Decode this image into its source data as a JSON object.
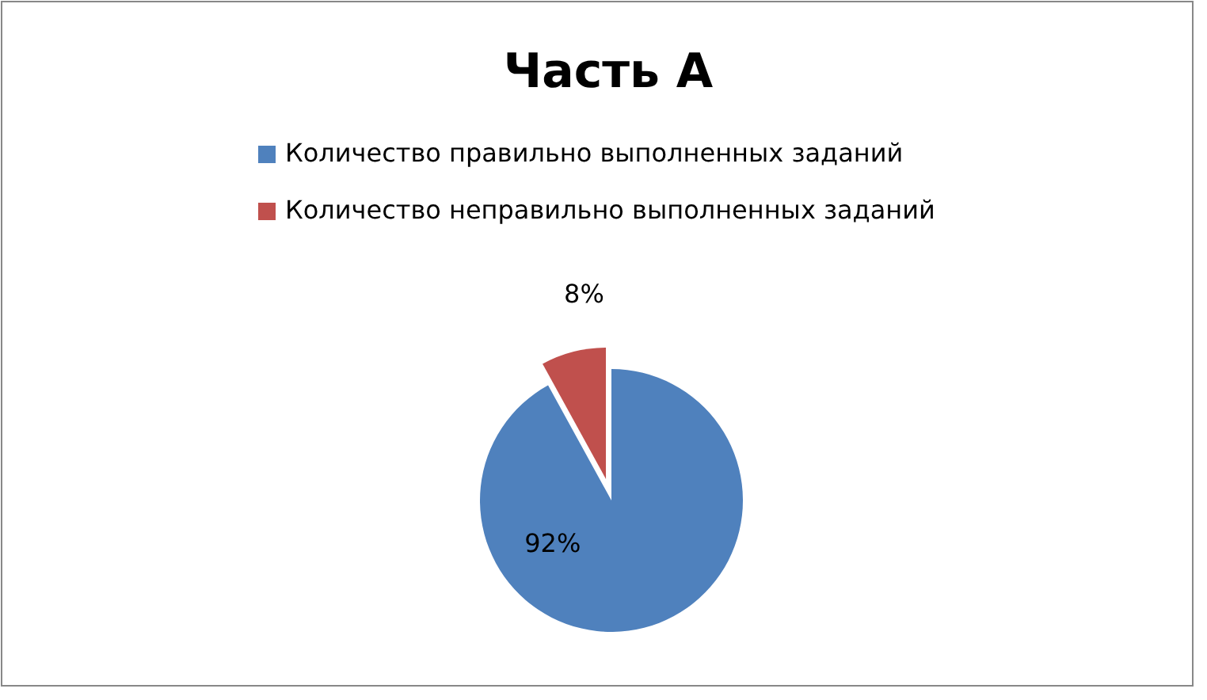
{
  "chart_data": {
    "type": "pie",
    "title": "Часть А",
    "categories": [
      "Количество правильно выполненных заданий",
      "Количество неправильно выполненных заданий"
    ],
    "values": [
      92,
      8
    ],
    "value_labels": [
      "92%",
      "8%"
    ],
    "colors": [
      "#4f81bd",
      "#c0504d"
    ],
    "legend": "top"
  }
}
